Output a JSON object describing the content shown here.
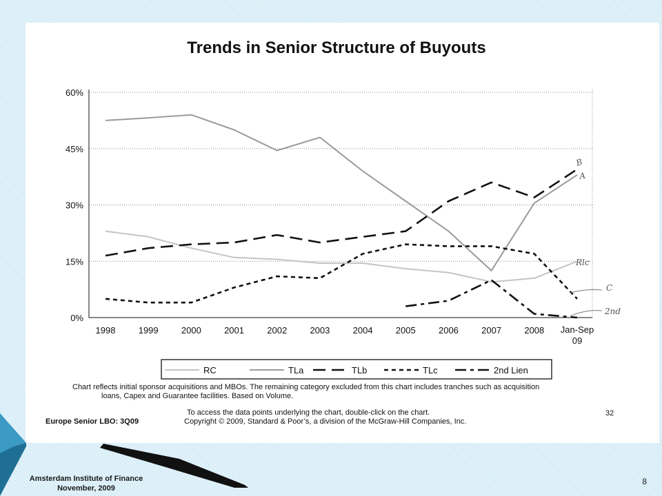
{
  "slide": {
    "footer_org": "Amsterdam Institute of Finance",
    "footer_date": "November, 2009",
    "page_number": "8"
  },
  "chart_data": {
    "type": "line",
    "title": "Trends in Senior Structure of Buyouts",
    "categories": [
      "1998",
      "1999",
      "2000",
      "2001",
      "2002",
      "2003",
      "2004",
      "2005",
      "2006",
      "2007",
      "2008",
      "Jan-Sep 09"
    ],
    "y_ticks": [
      "0%",
      "15%",
      "30%",
      "45%",
      "60%"
    ],
    "ylim": [
      0,
      60
    ],
    "grid": true,
    "legend_position": "bottom",
    "series": [
      {
        "name": "RC",
        "color": "#c4c4c4",
        "dash": "solid",
        "values": [
          23,
          21.5,
          18.5,
          16,
          15.5,
          14.5,
          14.5,
          13,
          12,
          9.5,
          10.5,
          15
        ]
      },
      {
        "name": "TLa",
        "color": "#9a9a9a",
        "dash": "solid",
        "values": [
          52.5,
          53.2,
          54,
          50,
          44.5,
          48,
          39,
          31,
          23,
          12.5,
          30.5,
          38
        ]
      },
      {
        "name": "TLb",
        "color": "#111111",
        "dash": "long",
        "values": [
          16.5,
          18.5,
          19.5,
          20,
          22,
          20,
          21.5,
          23,
          31,
          36,
          32,
          39.5
        ]
      },
      {
        "name": "TLc",
        "color": "#111111",
        "dash": "short",
        "values": [
          5,
          4,
          4,
          8,
          11,
          10.5,
          17,
          19.5,
          19,
          19,
          17,
          5
        ]
      },
      {
        "name": "2nd Lien",
        "color": "#111111",
        "dash": "longshort",
        "values": [
          null,
          null,
          null,
          null,
          null,
          null,
          null,
          3,
          4.5,
          10,
          1,
          0
        ]
      }
    ],
    "notes": [
      "Chart reflects initial sponsor acquisitions and MBOs. The remaining category excluded from this chart includes tranches such as acquisition",
      "loans, Capex and Guarantee facilities.  Based on Volume."
    ],
    "access_note": "To access the data points underlying the chart, double-click on the chart.",
    "copyright": "Copyright © 2009, Standard & Poor’s, a division of the McGraw-Hill Companies, Inc.",
    "source_label": "Europe Senior LBO: 3Q09",
    "source_page": "32",
    "handwritten_annotations": [
      "B",
      "A",
      "Rlc",
      "C",
      "2nd"
    ]
  }
}
